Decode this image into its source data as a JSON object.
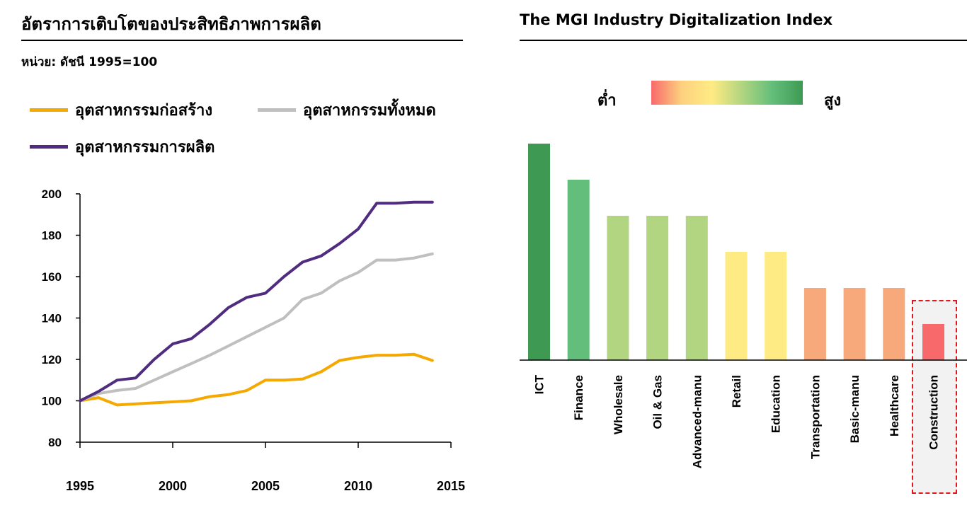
{
  "chart_data": [
    {
      "type": "line",
      "title": "อัตราการเติบโตของประสิทธิภาพการผลิต",
      "subtitle": "หน่วย: ดัชนี 1995=100",
      "xlabel": "",
      "ylabel": "",
      "xlim": [
        1995,
        2015
      ],
      "ylim": [
        80,
        200
      ],
      "x_ticks": [
        "1995",
        "2000",
        "2005",
        "2010",
        "2015"
      ],
      "y_ticks": [
        "80",
        "100",
        "120",
        "140",
        "160",
        "180",
        "200"
      ],
      "legend_position": "top",
      "grid": false,
      "x": [
        1995,
        1996,
        1997,
        1998,
        1999,
        2000,
        2001,
        2002,
        2003,
        2004,
        2005,
        2006,
        2007,
        2008,
        2009,
        2010,
        2011,
        2012,
        2013,
        2014
      ],
      "series": [
        {
          "name": "อุตสาหกรรมก่อสร้าง",
          "color": "#f5a800",
          "values": [
            100,
            101.5,
            98,
            98.5,
            99,
            99.5,
            100,
            102,
            103,
            105,
            110,
            110,
            110.5,
            114,
            119.5,
            121,
            122,
            122,
            122.5,
            119.5
          ]
        },
        {
          "name": "อุตสาหกรรมทั้งหมด",
          "color": "#bfbfbf",
          "values": [
            100,
            103.5,
            105,
            106,
            110,
            114,
            118,
            122,
            126.5,
            131,
            135.5,
            140,
            149,
            152,
            158,
            162,
            168,
            168,
            169,
            171
          ]
        },
        {
          "name": "อุตสาหกรรมการผลิต",
          "color": "#4f2c7f",
          "values": [
            100,
            104.5,
            110,
            111,
            120,
            127.5,
            130,
            137,
            145,
            150,
            152,
            160,
            167,
            170,
            176,
            183,
            195.5,
            195.5,
            196,
            196
          ]
        }
      ]
    },
    {
      "type": "bar",
      "title": "The MGI Industry Digitalization Index",
      "scale_low_label": "ต่ำ",
      "scale_high_label": "สูง",
      "categories": [
        "ICT",
        "Finance",
        "Wholesale",
        "Oil & Gas",
        "Advanced-manu",
        "Retail",
        "Education",
        "Transportation",
        "Basic-manu",
        "Healthcare",
        "Construction"
      ],
      "values": [
        6,
        5,
        4,
        4,
        4,
        3,
        3,
        2,
        2,
        2,
        1
      ],
      "ylim": [
        0,
        6
      ],
      "colors": [
        "#3e9a52",
        "#63be7b",
        "#b1d580",
        "#b1d580",
        "#b1d580",
        "#ffeb84",
        "#ffeb84",
        "#f8a97b",
        "#f8a97b",
        "#f8a97b",
        "#f8696b"
      ],
      "highlighted_category": "Construction",
      "grid": false
    }
  ]
}
